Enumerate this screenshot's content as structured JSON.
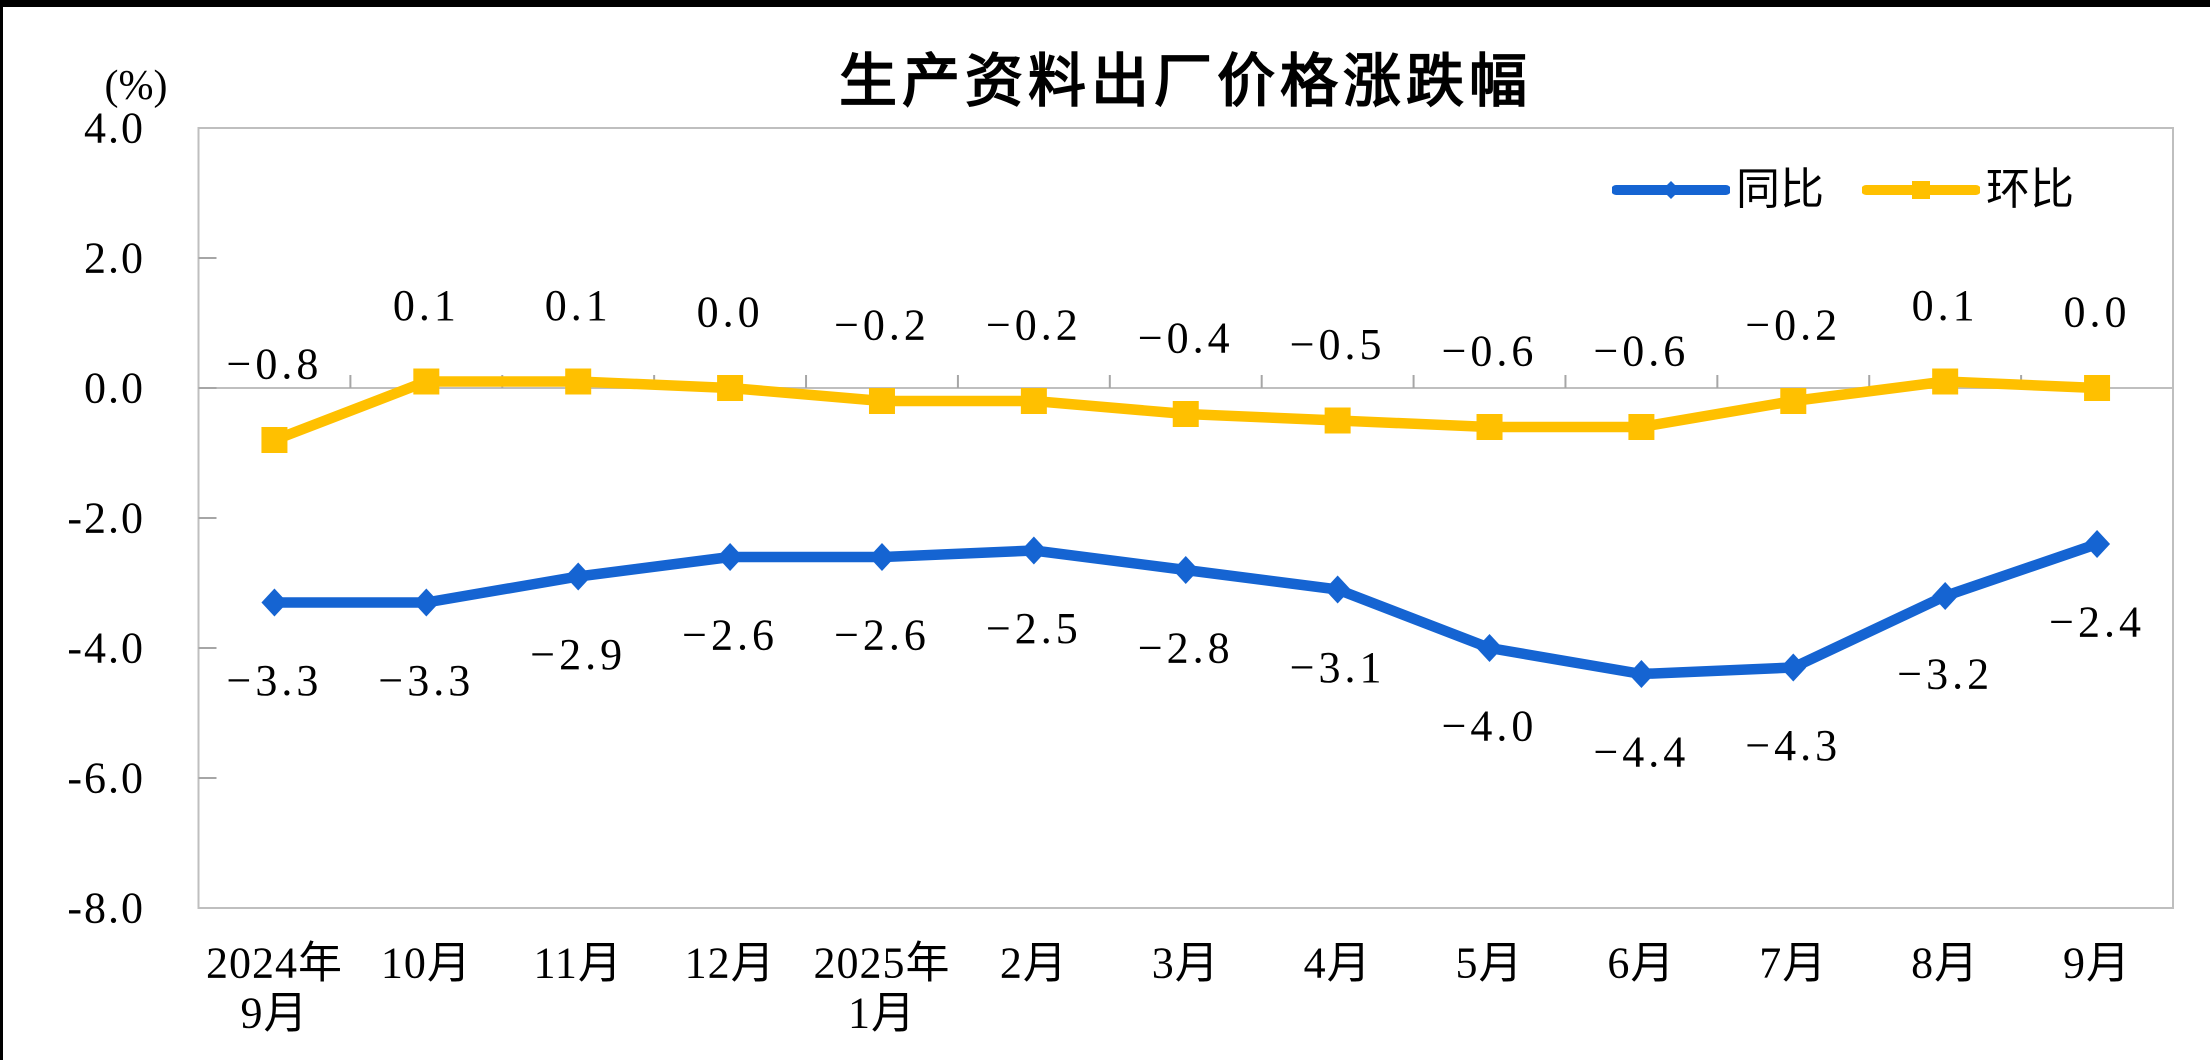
{
  "chart": {
    "title": "生产资料出厂价格涨跌幅",
    "y_unit": "(%)"
  },
  "chart_data": {
    "type": "line",
    "title": "生产资料出厂价格涨跌幅",
    "y_unit_label": "(%)",
    "categories": [
      [
        "2024年",
        "9月"
      ],
      [
        "10月"
      ],
      [
        "11月"
      ],
      [
        "12月"
      ],
      [
        "2025年",
        "1月"
      ],
      [
        "2月"
      ],
      [
        "3月"
      ],
      [
        "4月"
      ],
      [
        "5月"
      ],
      [
        "6月"
      ],
      [
        "7月"
      ],
      [
        "8月"
      ],
      [
        "9月"
      ]
    ],
    "series": [
      {
        "id": "yoy",
        "name": "同比",
        "color": "#1564D2",
        "marker": "diamond",
        "label_position": "below",
        "values": [
          -3.3,
          -3.3,
          -2.9,
          -2.6,
          -2.6,
          -2.5,
          -2.8,
          -3.1,
          -4.0,
          -4.4,
          -4.3,
          -3.2,
          -2.4
        ],
        "labels": [
          "−3.3",
          "−3.3",
          "−2.9",
          "−2.6",
          "−2.6",
          "−2.5",
          "−2.8",
          "−3.1",
          "−4.0",
          "−4.4",
          "−4.3",
          "−3.2",
          "−2.4"
        ]
      },
      {
        "id": "mom",
        "name": "环比",
        "color": "#FFC000",
        "marker": "square",
        "label_position": "above",
        "values": [
          -0.8,
          0.1,
          0.1,
          0.0,
          -0.2,
          -0.2,
          -0.4,
          -0.5,
          -0.6,
          -0.6,
          -0.2,
          0.1,
          0.0
        ],
        "labels": [
          "−0.8",
          "0.1",
          "0.1",
          "0.0",
          "−0.2",
          "−0.2",
          "−0.4",
          "−0.5",
          "−0.6",
          "−0.6",
          "−0.2",
          "0.1",
          "0.0"
        ]
      }
    ],
    "y_axis": {
      "min": -8.0,
      "max": 4.0,
      "tick_step": 2.0,
      "tick_labels": [
        "4.0",
        "2.0",
        "0.0",
        "-2.0",
        "-4.0",
        "-6.0",
        "-8.0"
      ]
    },
    "legend_position": "top-right",
    "grid": "zero-line-only",
    "colors": {
      "axis_border": "#BFBFBF",
      "zero_line": "#BFBFBF",
      "tick": "#A6A6A6",
      "label": "#000000",
      "background": "#FFFFFF"
    }
  }
}
